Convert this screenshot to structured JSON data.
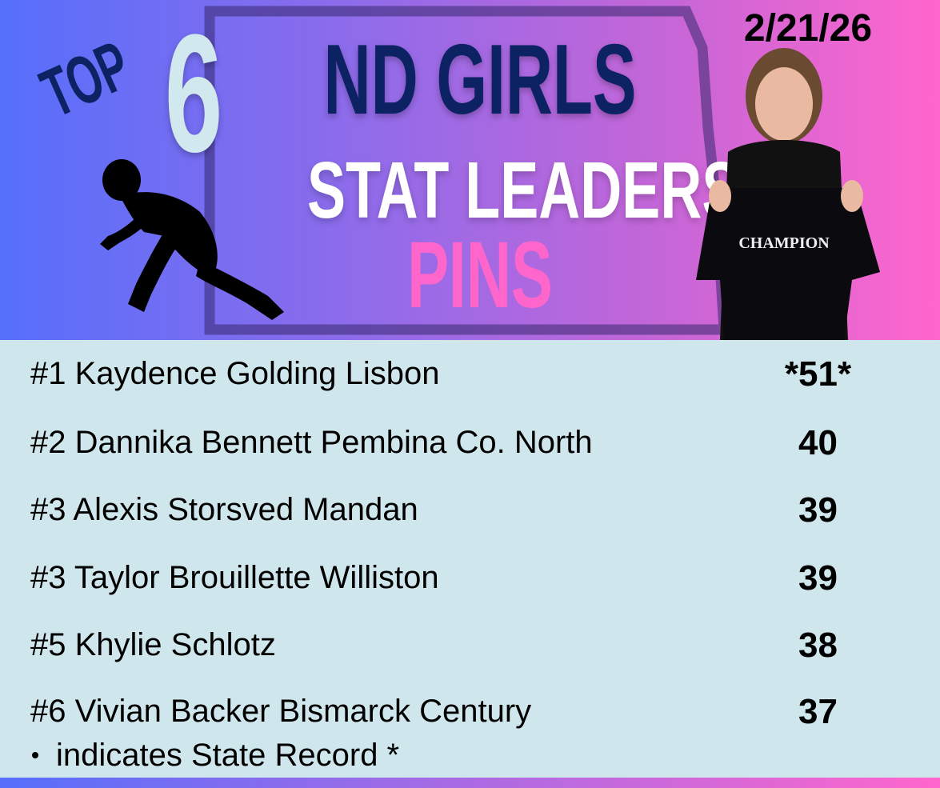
{
  "header": {
    "top_label": "TOP",
    "top_number": "6",
    "title_line1": "ND GIRLS",
    "title_line2": "STAT LEADERS",
    "category": "PINS",
    "date": "2/21/26"
  },
  "colors": {
    "gradient_left": "#566ffb",
    "gradient_right": "#ff66cc",
    "navy": "#0d2263",
    "pink": "#ff66cc",
    "panel": "#cfe7ec"
  },
  "leaders": [
    {
      "name": "#1 Kaydence Golding Lisbon",
      "value": "*51*"
    },
    {
      "name": "#2 Dannika Bennett Pembina Co. North",
      "value": "40"
    },
    {
      "name": "#3 Alexis Storsved Mandan",
      "value": "39"
    },
    {
      "name": "#3 Taylor Brouillette Williston",
      "value": "39"
    },
    {
      "name": "#5 Khylie Schlotz",
      "value": "38"
    },
    {
      "name": "#6 Vivian Backer Bismarck Century",
      "value": "37"
    }
  ],
  "footnote": "indicates State Record *"
}
